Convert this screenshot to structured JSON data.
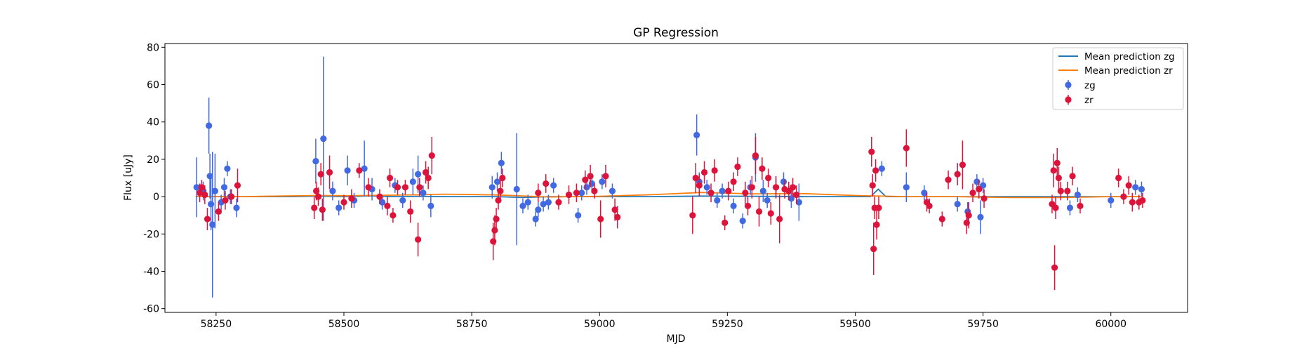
{
  "chart_data": {
    "type": "scatter",
    "title": "GP Regression",
    "xlabel": "MJD",
    "ylabel": "Flux [uJy]",
    "xlim": [
      58150,
      60150
    ],
    "ylim": [
      -62,
      82
    ],
    "xticks": [
      58250,
      58500,
      58750,
      59000,
      59250,
      59500,
      59750,
      60000
    ],
    "yticks": [
      -60,
      -40,
      -20,
      0,
      20,
      40,
      60,
      80
    ],
    "legend_position": "top-right",
    "colors": {
      "mean_zg": "#1f77b4",
      "mean_zr": "#ff7f0e",
      "zg": "#4169e1",
      "zr": "#dc143c"
    },
    "legend": [
      "Mean prediction zg",
      "Mean prediction zr",
      "zg",
      "zr"
    ],
    "series": [
      {
        "name": "Mean prediction zg",
        "kind": "line",
        "x": [
          58210,
          58250,
          58300,
          58400,
          58450,
          58500,
          58550,
          58600,
          58650,
          58700,
          58800,
          58850,
          58900,
          59000,
          59100,
          59200,
          59300,
          59350,
          59400,
          59500,
          59530,
          59545,
          59560,
          59600,
          59700,
          59800,
          59900,
          60000,
          60060
        ],
        "y": [
          0,
          0,
          0,
          0,
          0.3,
          0,
          0.4,
          0,
          0.2,
          0,
          0,
          -0.5,
          0,
          0,
          0,
          0.3,
          0.2,
          0.1,
          0,
          0,
          0,
          4,
          0,
          0,
          0,
          0,
          0,
          0,
          0
        ]
      },
      {
        "name": "Mean prediction zr",
        "kind": "line",
        "x": [
          58210,
          58250,
          58300,
          58450,
          58500,
          58600,
          58700,
          58800,
          58900,
          59000,
          59100,
          59200,
          59300,
          59400,
          59500,
          59600,
          59700,
          59800,
          59900,
          60000,
          60060
        ],
        "y": [
          0,
          0,
          0,
          0.6,
          0.5,
          0.8,
          1.3,
          0.9,
          -0.2,
          0.2,
          1,
          2.2,
          1.5,
          1.6,
          0.6,
          0,
          0,
          -0.5,
          -0.5,
          0,
          0
        ]
      },
      {
        "name": "zg",
        "kind": "errorbar",
        "points": [
          [
            58212,
            5,
            16
          ],
          [
            58225,
            3,
            5
          ],
          [
            58236,
            38,
            15
          ],
          [
            58238,
            11,
            12
          ],
          [
            58240,
            -4,
            14
          ],
          [
            58243,
            -15,
            39
          ],
          [
            58248,
            3,
            20
          ],
          [
            58260,
            -3,
            4
          ],
          [
            58266,
            5,
            5
          ],
          [
            58272,
            15,
            4
          ],
          [
            58278,
            0,
            4
          ],
          [
            58290,
            -6,
            5
          ],
          [
            58445,
            19,
            12
          ],
          [
            58460,
            31,
            44
          ],
          [
            58478,
            3,
            5
          ],
          [
            58490,
            -6,
            4
          ],
          [
            58507,
            14,
            8
          ],
          [
            58520,
            -2,
            4
          ],
          [
            58540,
            15,
            15
          ],
          [
            58555,
            4,
            6
          ],
          [
            58575,
            -3,
            4
          ],
          [
            58600,
            6,
            4
          ],
          [
            58615,
            -2,
            4
          ],
          [
            58635,
            8,
            7
          ],
          [
            58645,
            12,
            10
          ],
          [
            58655,
            2,
            4
          ],
          [
            58670,
            -5,
            6
          ],
          [
            58790,
            5,
            6
          ],
          [
            58800,
            8,
            5
          ],
          [
            58808,
            18,
            6
          ],
          [
            58838,
            4,
            30
          ],
          [
            58850,
            -5,
            4
          ],
          [
            58860,
            -3,
            4
          ],
          [
            58875,
            -12,
            4
          ],
          [
            58880,
            -7,
            4
          ],
          [
            58890,
            -4,
            4
          ],
          [
            58900,
            -3,
            4
          ],
          [
            58910,
            6,
            4
          ],
          [
            58958,
            -10,
            4
          ],
          [
            58965,
            2,
            4
          ],
          [
            58975,
            5,
            4
          ],
          [
            58985,
            7,
            5
          ],
          [
            59005,
            8,
            4
          ],
          [
            59025,
            3,
            4
          ],
          [
            59190,
            33,
            11
          ],
          [
            59195,
            8,
            5
          ],
          [
            59210,
            5,
            4
          ],
          [
            59230,
            -2,
            4
          ],
          [
            59240,
            3,
            4
          ],
          [
            59262,
            -5,
            4
          ],
          [
            59280,
            -13,
            4
          ],
          [
            59295,
            5,
            4
          ],
          [
            59305,
            21,
            13
          ],
          [
            59320,
            3,
            6
          ],
          [
            59328,
            -2,
            4
          ],
          [
            59345,
            5,
            5
          ],
          [
            59360,
            8,
            5
          ],
          [
            59375,
            -1,
            5
          ],
          [
            59390,
            -3,
            10
          ],
          [
            59552,
            15,
            4
          ],
          [
            59600,
            5,
            8
          ],
          [
            59635,
            2,
            4
          ],
          [
            59700,
            -4,
            4
          ],
          [
            59720,
            -8,
            5
          ],
          [
            59738,
            8,
            4
          ],
          [
            59745,
            -11,
            9
          ],
          [
            59750,
            6,
            4
          ],
          [
            59920,
            -6,
            4
          ],
          [
            59935,
            1,
            4
          ],
          [
            60000,
            -2,
            4
          ],
          [
            60048,
            5,
            4
          ],
          [
            60060,
            4,
            4
          ]
        ]
      },
      {
        "name": "zr",
        "kind": "errorbar",
        "points": [
          [
            58218,
            2,
            5
          ],
          [
            58222,
            5,
            4
          ],
          [
            58228,
            1,
            5
          ],
          [
            58233,
            -12,
            6
          ],
          [
            58255,
            -8,
            5
          ],
          [
            58268,
            -2,
            5
          ],
          [
            58280,
            0,
            4
          ],
          [
            58292,
            6,
            9
          ],
          [
            58442,
            -6,
            6
          ],
          [
            58446,
            3,
            5
          ],
          [
            58450,
            0,
            5
          ],
          [
            58455,
            12,
            6
          ],
          [
            58458,
            -7,
            6
          ],
          [
            58472,
            13,
            9
          ],
          [
            58500,
            -3,
            4
          ],
          [
            58515,
            -1,
            5
          ],
          [
            58530,
            14,
            4
          ],
          [
            58548,
            5,
            5
          ],
          [
            58570,
            0,
            4
          ],
          [
            58585,
            -5,
            5
          ],
          [
            58590,
            10,
            5
          ],
          [
            58596,
            -10,
            4
          ],
          [
            58605,
            5,
            4
          ],
          [
            58620,
            5,
            4
          ],
          [
            58630,
            -8,
            6
          ],
          [
            58645,
            -23,
            9
          ],
          [
            58648,
            5,
            5
          ],
          [
            58660,
            13,
            6
          ],
          [
            58665,
            10,
            6
          ],
          [
            58672,
            22,
            10
          ],
          [
            58792,
            -24,
            10
          ],
          [
            58795,
            -18,
            8
          ],
          [
            58798,
            -12,
            6
          ],
          [
            58802,
            -2,
            5
          ],
          [
            58806,
            3,
            6
          ],
          [
            58810,
            10,
            5
          ],
          [
            58880,
            2,
            5
          ],
          [
            58895,
            7,
            5
          ],
          [
            58920,
            -3,
            4
          ],
          [
            58940,
            1,
            5
          ],
          [
            58955,
            2,
            5
          ],
          [
            58972,
            9,
            5
          ],
          [
            58982,
            11,
            6
          ],
          [
            58990,
            3,
            4
          ],
          [
            59002,
            -12,
            10
          ],
          [
            59012,
            11,
            6
          ],
          [
            59030,
            -7,
            6
          ],
          [
            59035,
            -11,
            6
          ],
          [
            59182,
            -10,
            10
          ],
          [
            59188,
            10,
            8
          ],
          [
            59195,
            6,
            6
          ],
          [
            59205,
            13,
            6
          ],
          [
            59218,
            2,
            5
          ],
          [
            59225,
            14,
            6
          ],
          [
            59245,
            -14,
            4
          ],
          [
            59252,
            3,
            5
          ],
          [
            59262,
            8,
            5
          ],
          [
            59270,
            16,
            5
          ],
          [
            59285,
            2,
            6
          ],
          [
            59290,
            -5,
            5
          ],
          [
            59298,
            5,
            6
          ],
          [
            59305,
            22,
            10
          ],
          [
            59312,
            -8,
            8
          ],
          [
            59318,
            15,
            6
          ],
          [
            59330,
            10,
            5
          ],
          [
            59335,
            -9,
            6
          ],
          [
            59345,
            5,
            6
          ],
          [
            59352,
            -12,
            13
          ],
          [
            59362,
            4,
            5
          ],
          [
            59370,
            3,
            5
          ],
          [
            59378,
            5,
            5
          ],
          [
            59385,
            1,
            5
          ],
          [
            59532,
            24,
            8
          ],
          [
            59534,
            6,
            6
          ],
          [
            59536,
            -28,
            14
          ],
          [
            59538,
            -6,
            6
          ],
          [
            59540,
            14,
            6
          ],
          [
            59542,
            -15,
            8
          ],
          [
            59546,
            -6,
            6
          ],
          [
            59600,
            26,
            10
          ],
          [
            59640,
            -3,
            5
          ],
          [
            59645,
            -5,
            4
          ],
          [
            59670,
            -12,
            4
          ],
          [
            59682,
            9,
            5
          ],
          [
            59700,
            12,
            6
          ],
          [
            59710,
            17,
            13
          ],
          [
            59718,
            -14,
            6
          ],
          [
            59722,
            -10,
            7
          ],
          [
            59730,
            2,
            5
          ],
          [
            59742,
            4,
            5
          ],
          [
            59752,
            -1,
            5
          ],
          [
            59885,
            -4,
            5
          ],
          [
            59888,
            14,
            9
          ],
          [
            59890,
            -38,
            12
          ],
          [
            59892,
            -6,
            6
          ],
          [
            59895,
            18,
            8
          ],
          [
            59898,
            10,
            6
          ],
          [
            59902,
            3,
            5
          ],
          [
            59915,
            3,
            5
          ],
          [
            59925,
            11,
            5
          ],
          [
            59940,
            -5,
            4
          ],
          [
            60015,
            10,
            5
          ],
          [
            60025,
            0,
            4
          ],
          [
            60035,
            6,
            5
          ],
          [
            60042,
            -3,
            5
          ],
          [
            60055,
            -3,
            4
          ],
          [
            60062,
            -2,
            4
          ]
        ]
      }
    ]
  }
}
